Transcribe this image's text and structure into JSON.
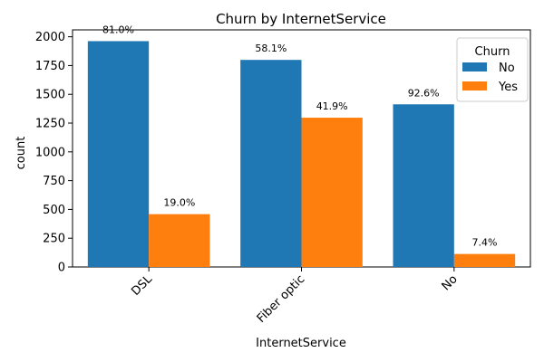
{
  "chart_data": {
    "type": "bar",
    "title": "Churn by InternetService",
    "xlabel": "InternetService",
    "ylabel": "count",
    "categories": [
      "DSL",
      "Fiber optic",
      "No"
    ],
    "series": [
      {
        "name": "No",
        "color": "#1f77b4",
        "values": [
          1962,
          1799,
          1413
        ],
        "labels": [
          "81.0%",
          "58.1%",
          "92.6%"
        ]
      },
      {
        "name": "Yes",
        "color": "#ff7f0e",
        "values": [
          459,
          1297,
          113
        ],
        "labels": [
          "19.0%",
          "41.9%",
          "7.4%"
        ]
      }
    ],
    "ylim": [
      0,
      2060
    ],
    "yticks": [
      0,
      250,
      500,
      750,
      1000,
      1250,
      1500,
      1750,
      2000
    ],
    "ytick_labels": [
      "0",
      "250",
      "500",
      "750",
      "1000",
      "1250",
      "1500",
      "1750",
      "2000"
    ],
    "xtick_rotation": 45,
    "grid": false,
    "legend": {
      "title": "Churn",
      "placement": "top-right"
    }
  }
}
